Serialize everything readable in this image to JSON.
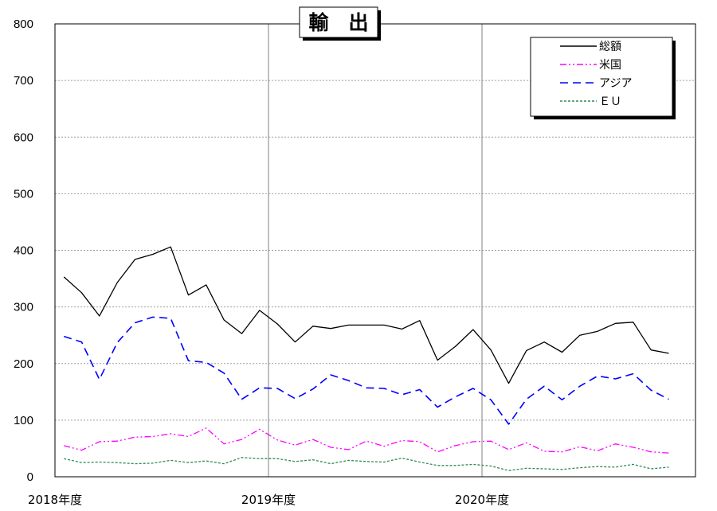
{
  "chart_data": {
    "type": "line",
    "title": "輸　出",
    "xlabel": "",
    "ylabel": "",
    "ylim": [
      0,
      800
    ],
    "y_ticks": [
      "0",
      "100",
      "200",
      "300",
      "400",
      "500",
      "600",
      "700",
      "800"
    ],
    "x_tick_labels": [
      "2018年度",
      "2019年度",
      "2020年度"
    ],
    "months": 36,
    "grid": true,
    "legend_position": "top-right",
    "series": [
      {
        "name": "総額",
        "color": "#000000",
        "dash": "solid",
        "values": [
          353,
          325,
          284,
          343,
          384,
          393,
          406,
          321,
          339,
          277,
          253,
          294,
          270,
          238,
          266,
          262,
          268,
          268,
          268,
          261,
          276,
          206,
          230,
          260,
          224,
          165,
          223,
          238,
          220,
          250,
          257,
          271,
          273,
          224,
          218
        ]
      },
      {
        "name": "米国",
        "color": "#ff00ff",
        "dash": "dashdotdot",
        "values": [
          55,
          47,
          62,
          63,
          70,
          71,
          76,
          71,
          86,
          58,
          66,
          84,
          65,
          56,
          66,
          52,
          48,
          63,
          54,
          64,
          62,
          44,
          55,
          62,
          63,
          48,
          60,
          45,
          44,
          53,
          46,
          58,
          52,
          44,
          42
        ]
      },
      {
        "name": "アジア",
        "color": "#0000ff",
        "dash": "dash",
        "values": [
          248,
          238,
          172,
          237,
          272,
          282,
          280,
          205,
          202,
          183,
          137,
          157,
          156,
          138,
          155,
          180,
          170,
          157,
          156,
          145,
          154,
          123,
          141,
          156,
          136,
          93,
          137,
          160,
          136,
          160,
          178,
          173,
          182,
          153,
          137
        ]
      },
      {
        "name": "ＥＵ",
        "color": "#2e8b57",
        "dash": "dot",
        "values": [
          32,
          25,
          26,
          25,
          23,
          24,
          29,
          25,
          28,
          23,
          34,
          32,
          32,
          27,
          30,
          23,
          29,
          27,
          26,
          33,
          26,
          20,
          20,
          22,
          19,
          11,
          15,
          14,
          13,
          16,
          18,
          17,
          22,
          14,
          17
        ]
      }
    ]
  }
}
